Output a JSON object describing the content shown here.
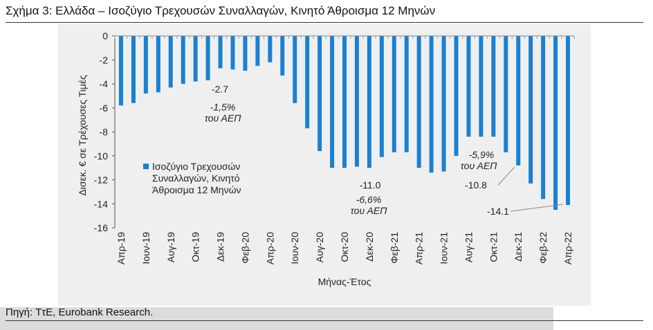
{
  "header": {
    "title": "Σχήμα 3: Ελλάδα – Ισοζύγιο Τρεχουσών Συναλλαγών, Κινητό Άθροισμα 12 Μηνών"
  },
  "footer": {
    "source": "Πηγή: ΤτΕ, Eurobank Research."
  },
  "colors": {
    "bar": "#1a80d0",
    "panel": "#efefef",
    "band": "#dcdcdc"
  },
  "chart_data": {
    "type": "bar",
    "xlabel": "Μήνας-Έτος",
    "ylabel": "Δισεκ. € σε Τρέχουσες Τιμές",
    "ylim": [
      -16,
      0
    ],
    "yticks": [
      0,
      -2,
      -4,
      -6,
      -8,
      -10,
      -12,
      -14,
      -16
    ],
    "grid": false,
    "legend_position": "center-left",
    "categories": [
      "Απρ-19",
      "Μαϊ-19",
      "Ιουν-19",
      "Ιουλ-19",
      "Αυγ-19",
      "Σεπ-19",
      "Οκτ-19",
      "Νοε-19",
      "Δεκ-19",
      "Ιαν-20",
      "Φεβ-20",
      "Μαρ-20",
      "Απρ-20",
      "Μαϊ-20",
      "Ιουν-20",
      "Ιουλ-20",
      "Αυγ-20",
      "Σεπ-20",
      "Οκτ-20",
      "Νοε-20",
      "Δεκ-20",
      "Ιαν-21",
      "Φεβ-21",
      "Μαρ-21",
      "Απρ-21",
      "Μαϊ-21",
      "Ιουν-21",
      "Ιουλ-21",
      "Αυγ-21",
      "Σεπ-21",
      "Οκτ-21",
      "Νοε-21",
      "Δεκ-21",
      "Ιαν-22",
      "Φεβ-22",
      "Μαρ-22",
      "Απρ-22"
    ],
    "tick_labels": [
      "Απρ-19",
      "Ιουν-19",
      "Αυγ-19",
      "Οκτ-19",
      "Δεκ-19",
      "Φεβ-20",
      "Απρ-20",
      "Ιουν-20",
      "Αυγ-20",
      "Οκτ-20",
      "Δεκ-20",
      "Φεβ-21",
      "Απρ-21",
      "Ιουν-21",
      "Αυγ-21",
      "Οκτ-21",
      "Δεκ-21",
      "Φεβ-22",
      "Απρ-22"
    ],
    "series": [
      {
        "name": "Ισοζύγιο Τρεχουσών Συναλλαγών, Κινητό Άθροισμα 12 Μηνών",
        "values": [
          -5.8,
          -5.6,
          -4.8,
          -4.7,
          -4.3,
          -4.0,
          -3.8,
          -3.7,
          -2.7,
          -2.8,
          -2.9,
          -2.5,
          -2.2,
          -3.3,
          -5.6,
          -7.7,
          -9.6,
          -11.0,
          -11.0,
          -10.9,
          -11.0,
          -10.1,
          -9.7,
          -9.7,
          -11.0,
          -11.4,
          -11.3,
          -10.0,
          -8.4,
          -8.4,
          -8.4,
          -9.7,
          -10.8,
          -12.3,
          -13.6,
          -14.5,
          -14.1
        ]
      }
    ],
    "annotations": [
      {
        "category": "Δεκ-19",
        "value_label": "-2.7",
        "note_pct": "-1,5%",
        "note_unit": "του ΑΕΠ"
      },
      {
        "category": "Δεκ-20",
        "value_label": "-11.0",
        "note_pct": "-6,6%",
        "note_unit": "του ΑΕΠ"
      },
      {
        "category": "Δεκ-21",
        "value_label": "-10.8",
        "note_pct": "-5,9%",
        "note_unit": "του ΑΕΠ"
      },
      {
        "category": "Απρ-22",
        "value_label": "-14.1"
      }
    ]
  }
}
